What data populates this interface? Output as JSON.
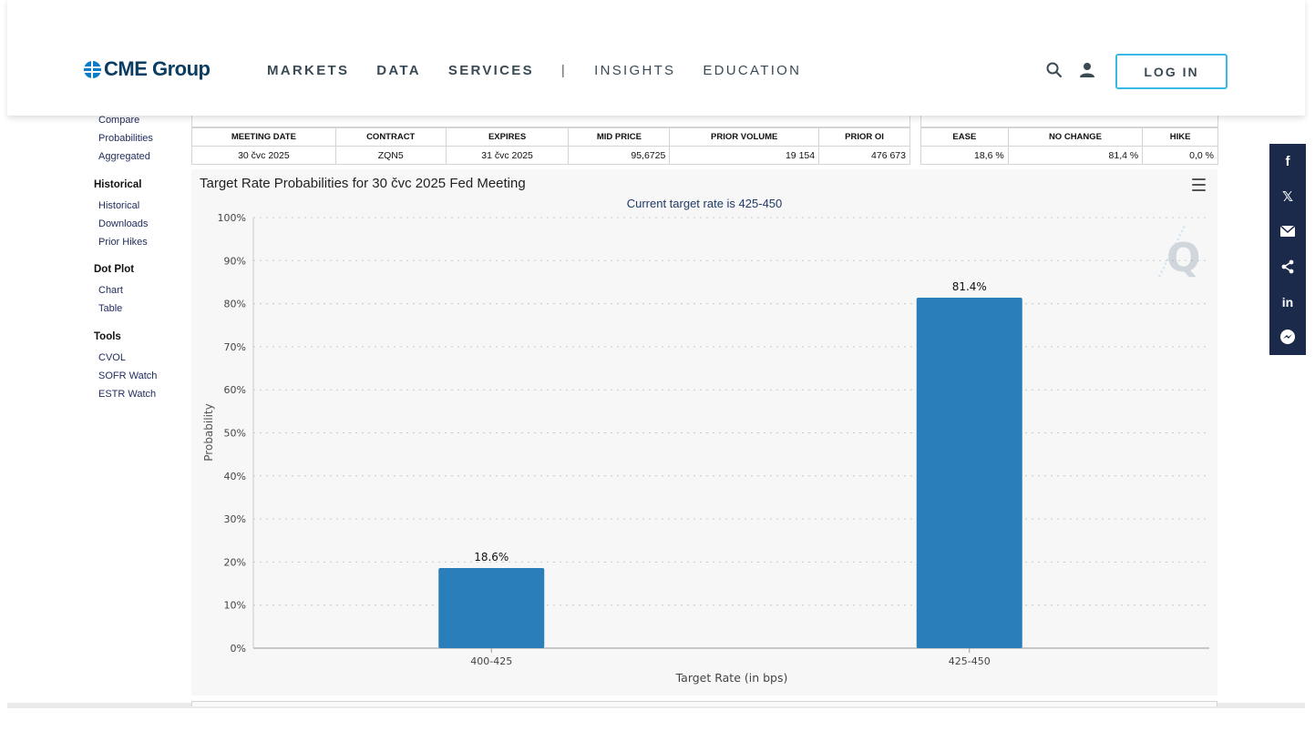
{
  "brand": {
    "name": "CME Group"
  },
  "nav": {
    "markets": "MARKETS",
    "data": "DATA",
    "services": "SERVICES",
    "separator": "|",
    "insights": "INSIGHTS",
    "education": "EDUCATION",
    "login": "LOG IN"
  },
  "sidebar": {
    "links_top": [
      "Compare",
      "Probabilities",
      "Aggregated"
    ],
    "historical": {
      "heading": "Historical",
      "links": [
        "Historical",
        "Downloads",
        "Prior Hikes"
      ]
    },
    "dotplot": {
      "heading": "Dot Plot",
      "links": [
        "Chart",
        "Table"
      ]
    },
    "tools": {
      "heading": "Tools",
      "links": [
        "CVOL",
        "SOFR Watch",
        "ESTR Watch"
      ]
    }
  },
  "meeting_table": {
    "headers": [
      "MEETING DATE",
      "CONTRACT",
      "EXPIRES",
      "MID PRICE",
      "PRIOR VOLUME",
      "PRIOR OI"
    ],
    "row": [
      "30 čvc 2025",
      "ZQN5",
      "31 čvc 2025",
      "95,6725",
      "19 154",
      "476 673"
    ]
  },
  "prob_table": {
    "headers": [
      "EASE",
      "NO CHANGE",
      "HIKE"
    ],
    "row": [
      "18,6 %",
      "81,4 %",
      "0,0 %"
    ]
  },
  "chart_data": {
    "type": "bar",
    "title": "Target Rate Probabilities for 30 čvc 2025 Fed Meeting",
    "subtitle": "Current target rate is 425-450",
    "xlabel": "Target Rate (in bps)",
    "ylabel": "Probability",
    "categories": [
      "400-425",
      "425-450"
    ],
    "values": [
      18.6,
      81.4
    ],
    "data_labels": [
      "18.6%",
      "81.4%"
    ],
    "ylim": [
      0,
      100
    ],
    "yticks": [
      0,
      10,
      20,
      30,
      40,
      50,
      60,
      70,
      80,
      90,
      100
    ],
    "ytick_labels": [
      "0%",
      "10%",
      "20%",
      "30%",
      "40%",
      "50%",
      "60%",
      "70%",
      "80%",
      "90%",
      "100%"
    ],
    "grid": true,
    "bar_color": "#2a7fba"
  },
  "share": {
    "items": [
      "facebook-icon",
      "x-icon",
      "email-icon",
      "share-icon",
      "linkedin-icon",
      "messenger-icon"
    ]
  },
  "colors": {
    "accent": "#39b8e6",
    "brand": "#0a7cc4",
    "share_bg": "#1b2a4a"
  }
}
